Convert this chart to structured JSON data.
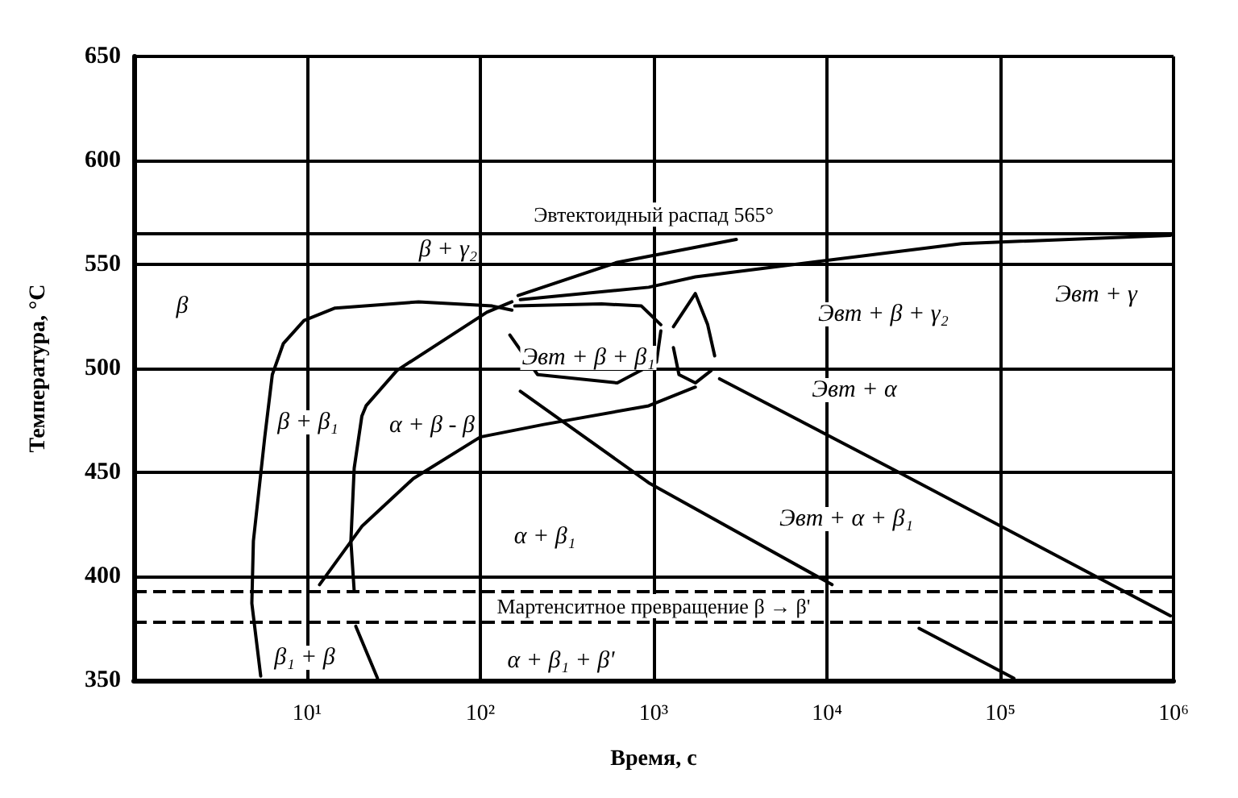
{
  "chart_data": {
    "type": "line",
    "xlabel": "Время, с",
    "ylabel": "Температура, °C",
    "log": "x",
    "grid": true,
    "marker": "none",
    "line_style": "solid",
    "xlim": [
      1,
      1000000
    ],
    "ylim": [
      350,
      650
    ],
    "xticks": [
      {
        "value": 10,
        "label": "10¹"
      },
      {
        "value": 100,
        "label": "10²"
      },
      {
        "value": 1000,
        "label": "10³"
      },
      {
        "value": 10000,
        "label": "10⁴"
      },
      {
        "value": 100000,
        "label": "10⁵"
      },
      {
        "value": 1000000,
        "label": "10⁶"
      }
    ],
    "yticks": [
      350,
      400,
      450,
      500,
      550,
      600,
      650
    ],
    "series": [
      {
        "color": "#000000",
        "x": [
          5.4,
          4.8,
          4.9,
          5.7,
          6.3,
          7.3,
          9.6,
          14.5,
          44,
          117,
          152
        ],
        "values": [
          352,
          387,
          417,
          467,
          497,
          512,
          523,
          529,
          532,
          530,
          528
        ]
      },
      {
        "color": "#000000",
        "x": [
          18.7,
          17.9,
          18.7,
          20.7,
          21.9,
          33,
          109,
          152
        ],
        "values": [
          393,
          417,
          452,
          477,
          482,
          499,
          527,
          532
        ]
      },
      {
        "color": "#000000",
        "x": [
          11.8,
          20.7,
          41,
          100,
          232,
          936,
          1740
        ],
        "values": [
          396,
          424,
          447,
          467,
          473,
          482,
          491
        ]
      },
      {
        "color": "#000000",
        "x": [
          158,
          500,
          850,
          1100
        ],
        "values": [
          530,
          531,
          530,
          521
        ]
      },
      {
        "color": "#000000",
        "x": [
          148,
          214,
          617,
          1038,
          1100
        ],
        "values": [
          516,
          497,
          493,
          503,
          518
        ]
      },
      {
        "color": "#000000",
        "x": [
          1300,
          1740,
          2050,
          2250
        ],
        "values": [
          520,
          536,
          521,
          506
        ]
      },
      {
        "color": "#000000",
        "x": [
          1300,
          1400,
          1740,
          2150
        ],
        "values": [
          510,
          497,
          493,
          499
        ]
      },
      {
        "color": "#000000",
        "x": [
          2400,
          26000,
          960000
        ],
        "values": [
          495,
          450,
          381
        ]
      },
      {
        "color": "#000000",
        "x": [
          170,
          936,
          10700
        ],
        "values": [
          489,
          445,
          396
        ]
      },
      {
        "color": "#000000",
        "x": [
          165,
          617,
          3000
        ],
        "values": [
          535,
          551,
          562
        ]
      },
      {
        "color": "#000000",
        "x": [
          170,
          936,
          1740,
          60000,
          960000
        ],
        "values": [
          533,
          539,
          544,
          560,
          564
        ]
      },
      {
        "color": "#000000",
        "x": [
          19.1,
          25.5
        ],
        "values": [
          376,
          351
        ]
      },
      {
        "color": "#000000",
        "x": [
          34000,
          120000
        ],
        "values": [
          375,
          351
        ]
      }
    ],
    "ref_lines": [
      {
        "axis": "y",
        "value": 565,
        "label": "Эвтектоидный распад 565°",
        "color": "#000000",
        "line_style": "solid"
      },
      {
        "axis": "y",
        "value": 393,
        "label": "Мартенситное превращение β → β'",
        "color": "#000000",
        "line_style": "dashed"
      },
      {
        "axis": "y",
        "value": 378,
        "label": null,
        "color": "#000000",
        "line_style": "dashed"
      }
    ],
    "annotations": [
      "β + γ₂",
      "β",
      "Эвт + β + γ₂",
      "Эвт + γ",
      "Эвт + β + β₁",
      "Эвт + α",
      "β + β₁",
      "α + β - β",
      "α + β₁",
      "Эвт + α + β₁",
      "β₁ + β",
      "α + β₁ + β'"
    ]
  }
}
